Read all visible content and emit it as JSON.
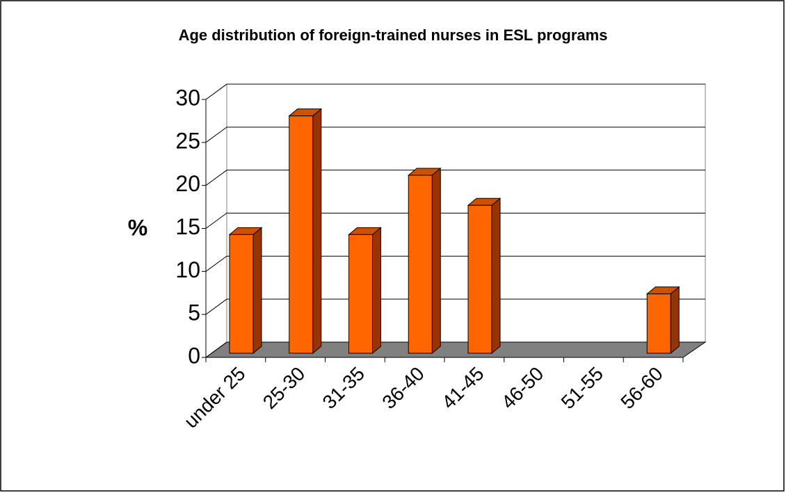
{
  "chart_data": {
    "type": "bar3d",
    "title": "Age distribution of foreign-trained nurses in ESL programs",
    "y_label": "%",
    "categories": [
      "under 25",
      "25-30",
      "31-35",
      "36-40",
      "41-45",
      "46-50",
      "51-55",
      "56-60"
    ],
    "values": [
      13.8,
      27.6,
      13.8,
      20.7,
      17.2,
      0,
      0,
      6.9
    ],
    "color": "#ff6600",
    "ylim": [
      0,
      30
    ],
    "yticks": [
      0,
      5,
      10,
      15,
      20,
      25,
      30
    ],
    "grid": true
  }
}
